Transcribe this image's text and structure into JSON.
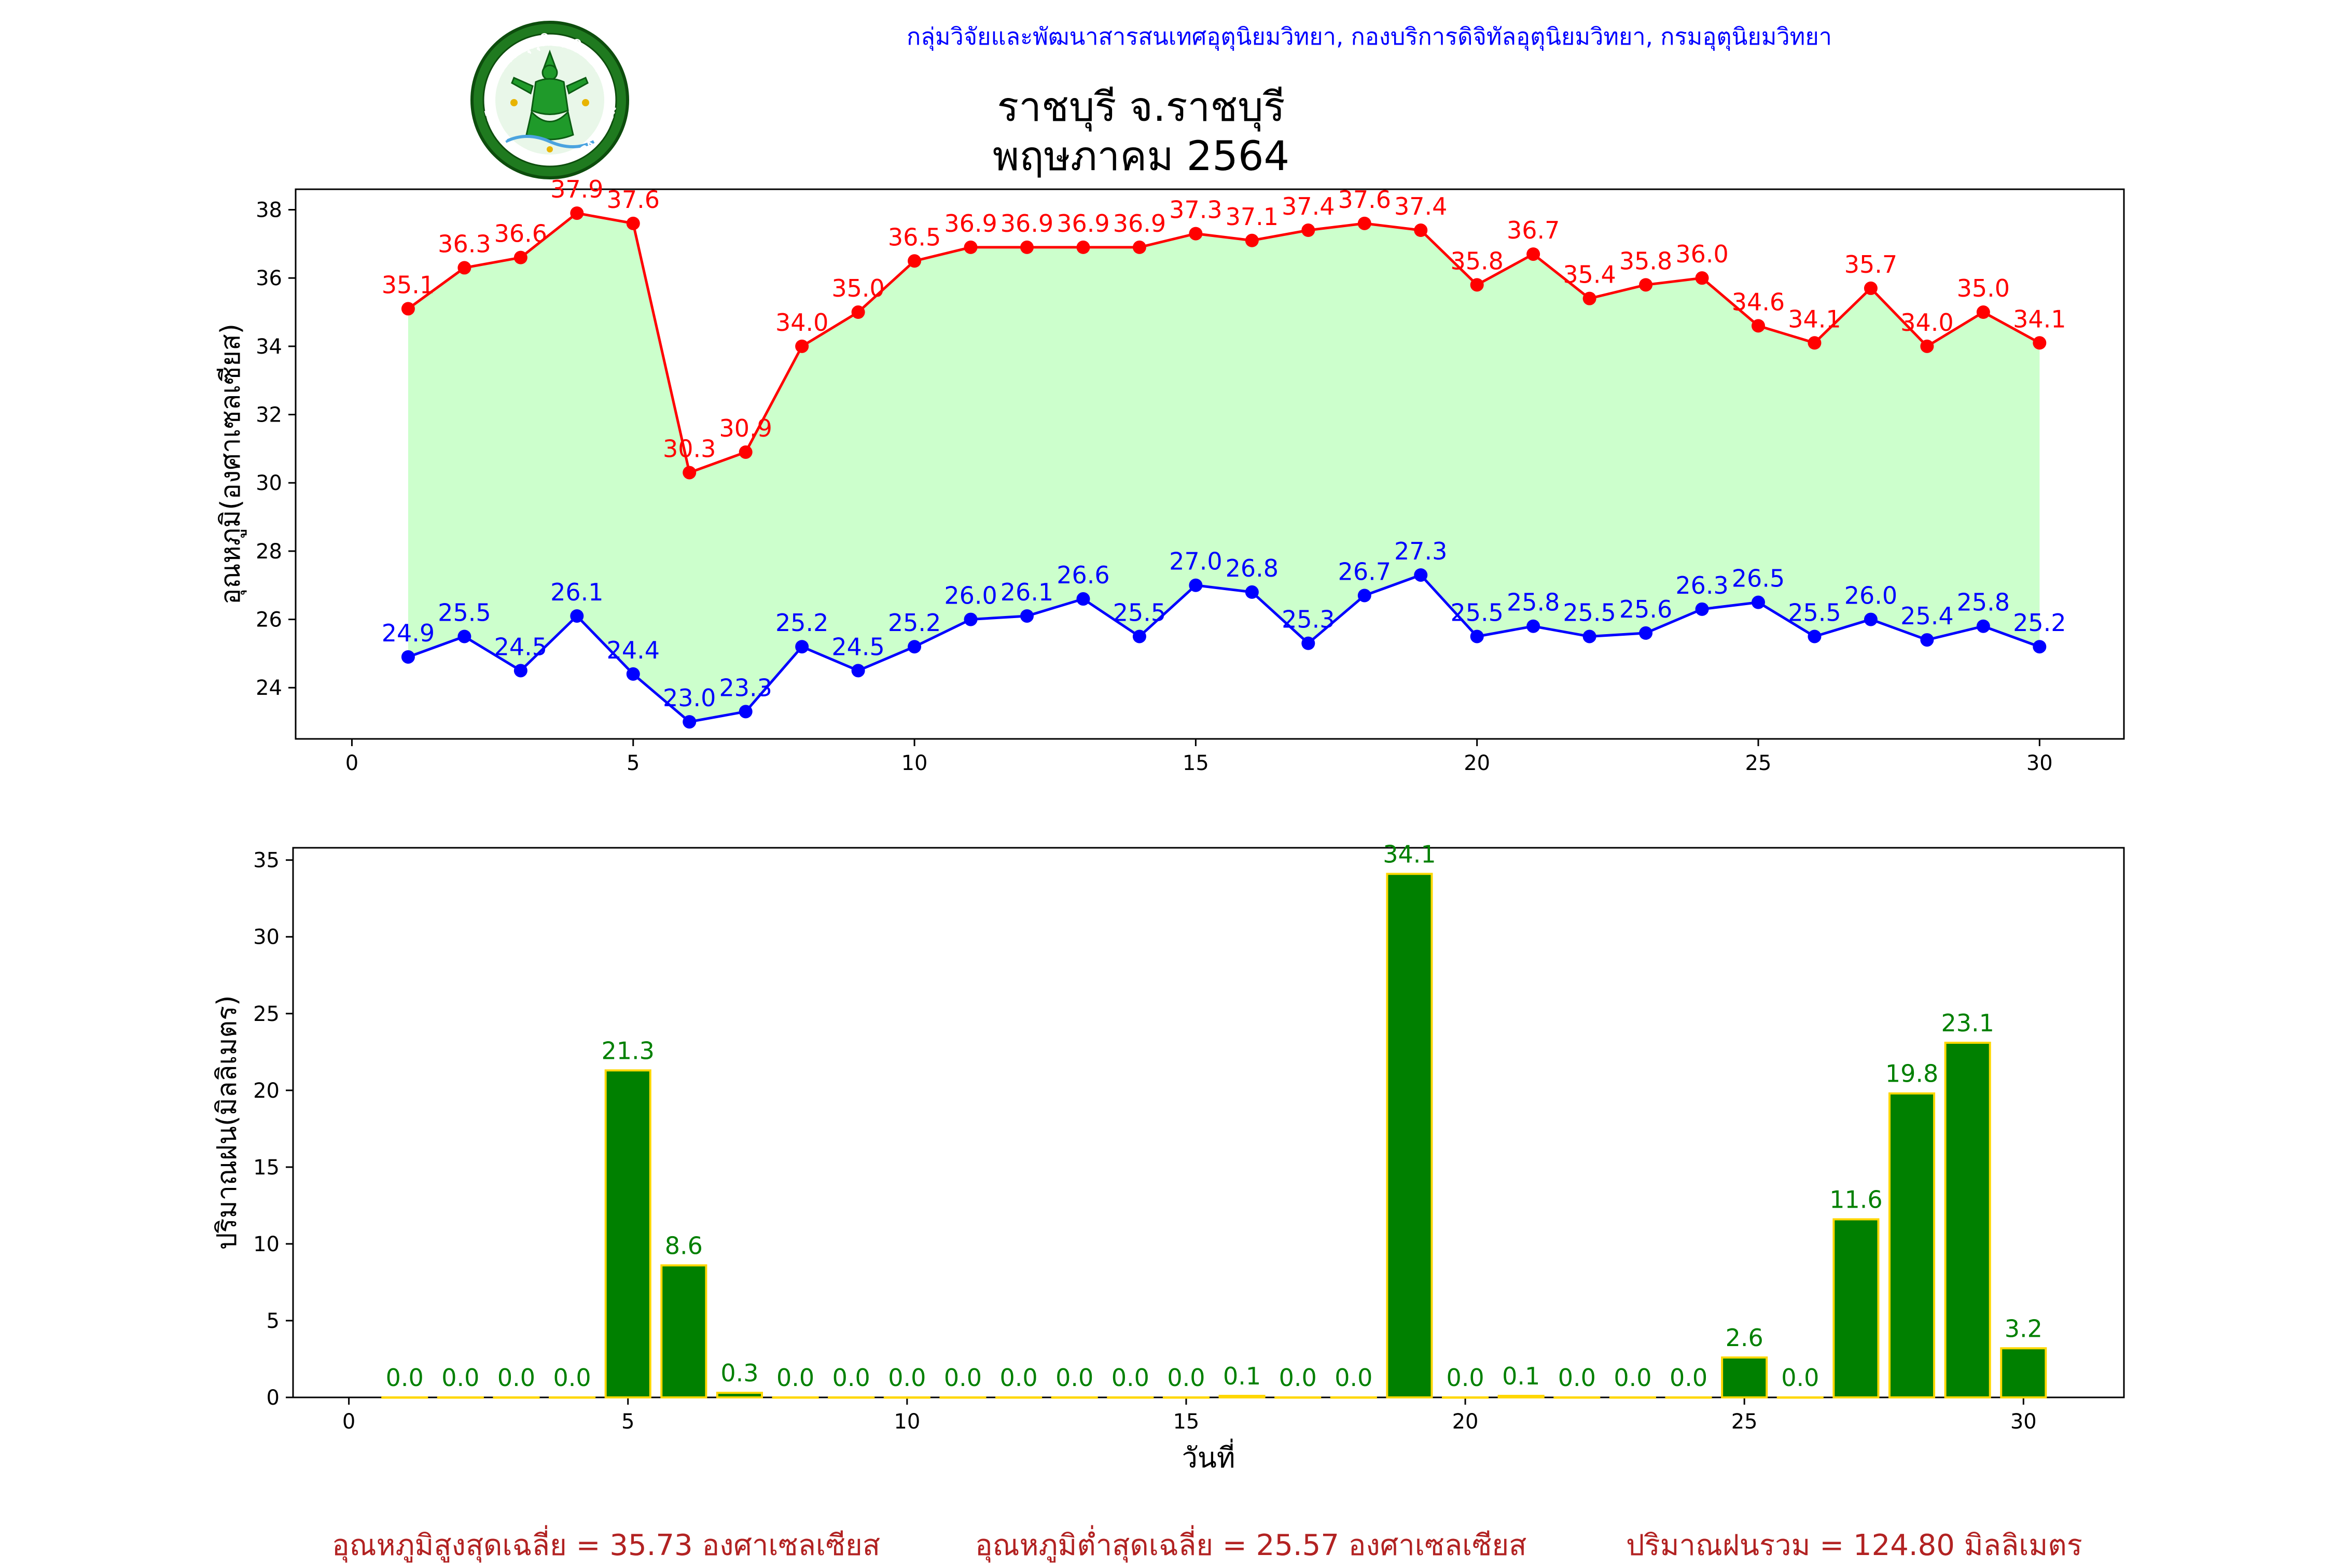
{
  "header": {
    "credit": "กลุ่มวิจัยและพัฒนาสารสนเทศอุตุนิยมวิทยา, กองบริการดิจิทัลอุตุนิยมวิทยา, กรมอุตุนิยมวิทยา",
    "logo_top_text": "กรมอุตุนิยมวิทยา",
    "logo_bottom_text": "METEOROLOGICAL DEPARTMENT"
  },
  "title": {
    "line1": "ราชบุรี จ.ราชบุรี",
    "line2": "พฤษภาคม 2564"
  },
  "colors": {
    "max_temp": "#ff0000",
    "min_temp": "#0000ff",
    "temp_fill": "#ccffcc",
    "rain_bar": "#008000",
    "rain_edge": "#ffd700",
    "rain_label": "#008000",
    "summary_text": "#b22222"
  },
  "chart_data": [
    {
      "type": "line",
      "ylabel": "อุณหภูมิ(องศาเซลเซียส)",
      "xlim": [
        -1,
        31.5
      ],
      "ylim": [
        22.5,
        38.6
      ],
      "xticks": [
        0,
        5,
        10,
        15,
        20,
        25,
        30
      ],
      "yticks": [
        24,
        26,
        28,
        30,
        32,
        34,
        36,
        38
      ],
      "x": [
        1,
        2,
        3,
        4,
        5,
        6,
        7,
        8,
        9,
        10,
        11,
        12,
        13,
        14,
        15,
        16,
        17,
        18,
        19,
        20,
        21,
        22,
        23,
        24,
        25,
        26,
        27,
        28,
        29,
        30
      ],
      "series": [
        {
          "key": "max",
          "values": [
            35.1,
            36.3,
            36.6,
            37.9,
            37.6,
            30.3,
            30.9,
            34.0,
            35.0,
            36.5,
            36.9,
            36.9,
            36.9,
            36.9,
            37.3,
            37.1,
            37.4,
            37.6,
            37.4,
            35.8,
            36.7,
            35.4,
            35.8,
            36.0,
            34.6,
            34.1,
            35.7,
            34.0,
            35.0,
            34.1
          ]
        },
        {
          "key": "min",
          "values": [
            24.9,
            25.5,
            24.5,
            26.1,
            24.4,
            23.0,
            23.3,
            25.2,
            24.5,
            25.2,
            26.0,
            26.1,
            26.6,
            25.5,
            27.0,
            26.8,
            25.3,
            26.7,
            27.3,
            25.5,
            25.8,
            25.5,
            25.6,
            26.3,
            26.5,
            25.5,
            26.0,
            25.4,
            25.8,
            25.2
          ]
        }
      ],
      "fill_between": true,
      "grid": false
    },
    {
      "type": "bar",
      "xlabel": "วันที่",
      "ylabel": "ปริมาณฝน(มิลลิเมตร)",
      "xlim": [
        -1,
        31.8
      ],
      "ylim": [
        0,
        35.8
      ],
      "xticks": [
        0,
        5,
        10,
        15,
        20,
        25,
        30
      ],
      "yticks": [
        0,
        5,
        10,
        15,
        20,
        25,
        30,
        35
      ],
      "categories": [
        1,
        2,
        3,
        4,
        5,
        6,
        7,
        8,
        9,
        10,
        11,
        12,
        13,
        14,
        15,
        16,
        17,
        18,
        19,
        20,
        21,
        22,
        23,
        24,
        25,
        26,
        27,
        28,
        29,
        30
      ],
      "values": [
        0.0,
        0.0,
        0.0,
        0.0,
        21.3,
        8.6,
        0.3,
        0.0,
        0.0,
        0.0,
        0.0,
        0.0,
        0.0,
        0.0,
        0.0,
        0.1,
        0.0,
        0.0,
        34.1,
        0.0,
        0.1,
        0.0,
        0.0,
        0.0,
        2.6,
        0.0,
        11.6,
        19.8,
        23.1,
        3.2
      ],
      "grid": false
    }
  ],
  "summary": {
    "avg_max": "อุณหภูมิสูงสุดเฉลี่ย = 35.73 องศาเซลเซียส",
    "avg_min": "อุณหภูมิต่ำสุดเฉลี่ย = 25.57 องศาเซลเซียส",
    "total_rain": "ปริมาณฝนรวม = 124.80 มิลลิเมตร"
  }
}
